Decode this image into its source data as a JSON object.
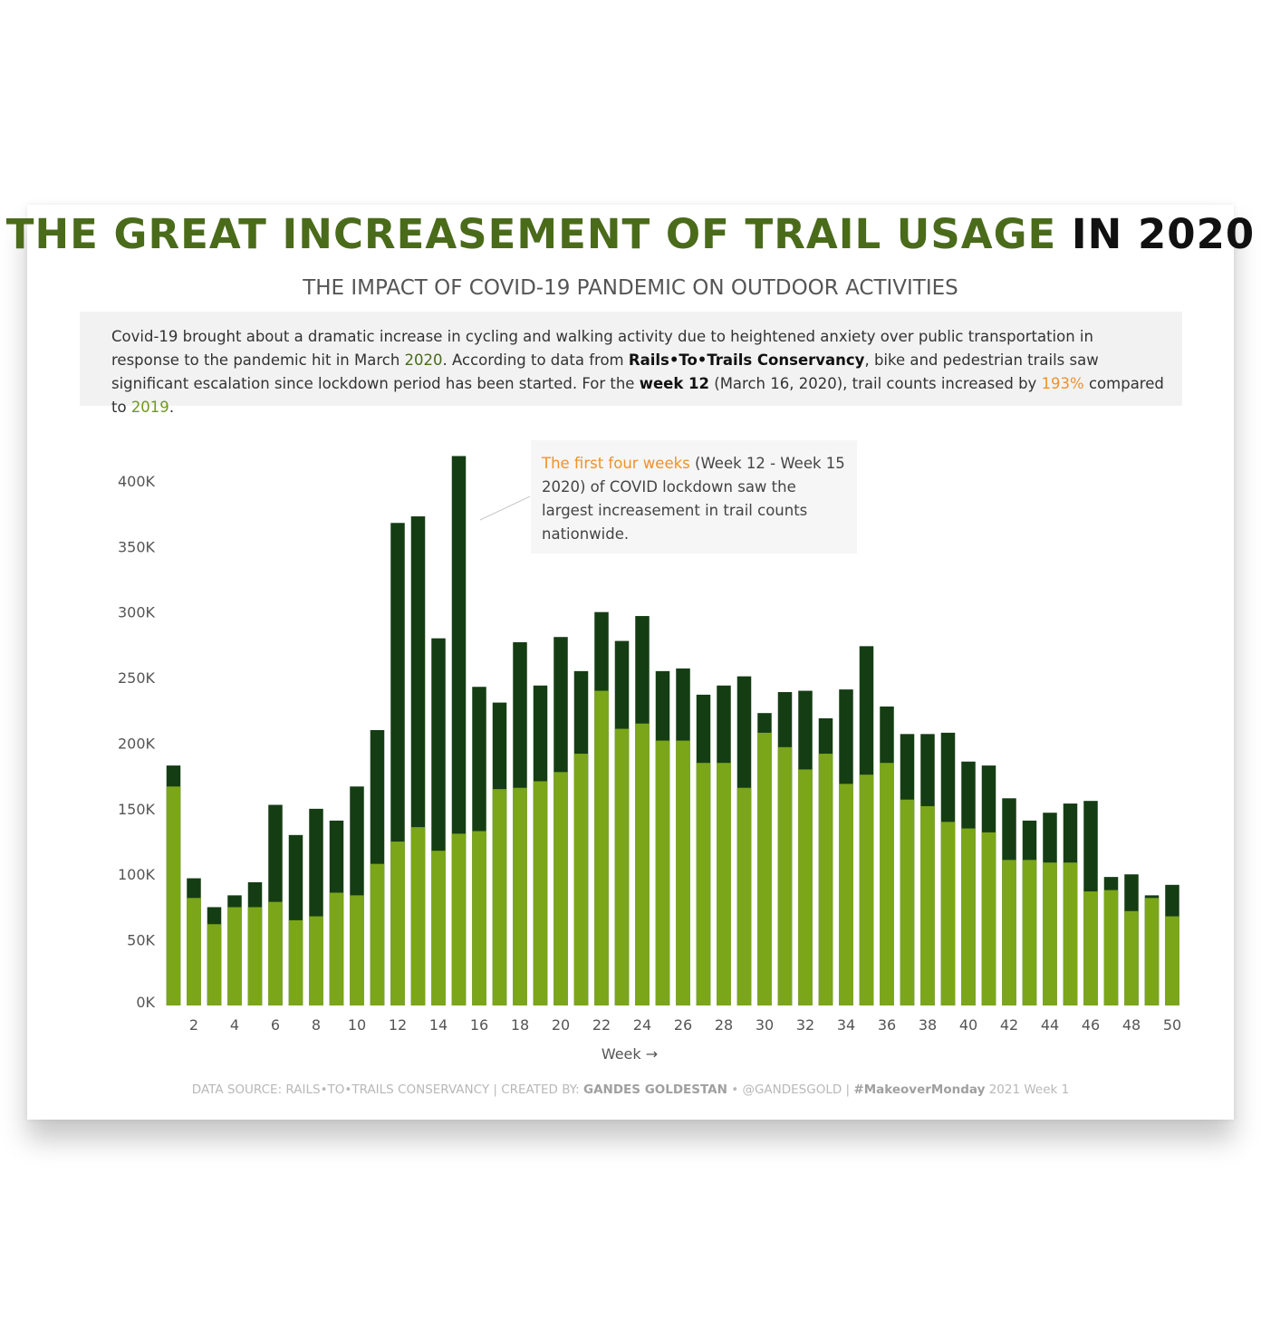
{
  "title": {
    "part1": "THE GREAT INCREASEMENT OF TRAIL USAGE",
    "part2": "IN 2020"
  },
  "subtitle": "THE IMPACT OF COVID-19 PANDEMIC ON OUTDOOR ACTIVITIES",
  "intro": {
    "t1": "Covid-19 brought about a dramatic increase in cycling and walking activity due to heightened anxiety over public transportation in response to the pandemic hit in March ",
    "year2020": "2020",
    "t2": ". According to data from ",
    "source": "Rails•To•Trails Conservancy",
    "t3": ", bike and pedestrian trails saw significant escalation since lockdown period has been started. For the ",
    "week": "week 12",
    "t4": " (March 16, 2020), trail counts increased by ",
    "pct": "193%",
    "t5": " compared to ",
    "year2019": "2019",
    "t6": "."
  },
  "annotation": {
    "highlight": "The first four weeks",
    "rest": " (Week 12 - Week 15 2020) of COVID lockdown saw the largest increasement in trail counts nationwide."
  },
  "footer": {
    "p1": "DATA SOURCE: RAILS•TO•TRAILS CONSERVANCY  |  CREATED BY: ",
    "author": "GANDES GOLDESTAN",
    "p2": " • @GANDESGOLD  |  ",
    "tag": "#MakeoverMonday",
    "p3": " 2021 Week 1"
  },
  "chart_data": {
    "type": "bar",
    "stacked": "overlay",
    "xlabel": "Week →",
    "ylabel": "",
    "ylim": [
      0,
      420000
    ],
    "yticks": [
      0,
      50000,
      100000,
      150000,
      200000,
      250000,
      300000,
      350000,
      400000
    ],
    "ytick_labels": [
      "0K",
      "50K",
      "100K",
      "150K",
      "200K",
      "250K",
      "300K",
      "350K",
      "400K"
    ],
    "xtick_labels": [
      "2",
      "4",
      "6",
      "8",
      "10",
      "12",
      "14",
      "16",
      "18",
      "20",
      "22",
      "24",
      "26",
      "28",
      "30",
      "32",
      "34",
      "36",
      "38",
      "40",
      "42",
      "44",
      "46",
      "48",
      "50"
    ],
    "grid": false,
    "x": [
      1,
      2,
      3,
      4,
      5,
      6,
      7,
      8,
      9,
      10,
      11,
      12,
      13,
      14,
      15,
      16,
      17,
      18,
      19,
      20,
      21,
      22,
      23,
      24,
      25,
      26,
      27,
      28,
      29,
      30,
      31,
      32,
      33,
      34,
      35,
      36,
      37,
      38,
      39,
      40,
      41,
      42,
      43,
      44,
      45,
      46,
      47,
      48,
      49,
      50
    ],
    "series": [
      {
        "color": "#153d14",
        "values": [
          183000,
          97000,
          75000,
          84000,
          94000,
          153000,
          130000,
          150000,
          141000,
          167000,
          210000,
          368000,
          373000,
          280000,
          419000,
          243000,
          231000,
          277000,
          244000,
          281000,
          255000,
          300000,
          278000,
          297000,
          255000,
          257000,
          237000,
          244000,
          251000,
          223000,
          239000,
          240000,
          219000,
          241000,
          274000,
          228000,
          207000,
          207000,
          208000,
          186000,
          183000,
          158000,
          141000,
          147000,
          154000,
          156000,
          98000,
          100000,
          84000,
          92000
        ]
      },
      {
        "color": "#7ba61a",
        "values": [
          167000,
          82000,
          62000,
          75000,
          75000,
          79000,
          65000,
          68000,
          86000,
          84000,
          108000,
          125000,
          136000,
          118000,
          131000,
          133000,
          165000,
          166000,
          171000,
          178000,
          192000,
          240000,
          211000,
          215000,
          202000,
          202000,
          185000,
          185000,
          166000,
          208000,
          197000,
          180000,
          192000,
          169000,
          176000,
          185000,
          157000,
          152000,
          140000,
          135000,
          132000,
          111000,
          111000,
          109000,
          109000,
          87000,
          88000,
          72000,
          82000,
          68000
        ]
      }
    ]
  }
}
